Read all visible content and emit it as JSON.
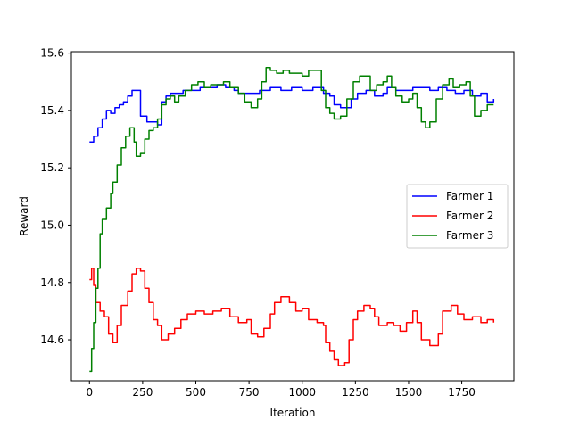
{
  "chart_data": {
    "type": "line",
    "title": "",
    "xlabel": "Iteration",
    "ylabel": "Reward",
    "xlim": [
      -85,
      1995
    ],
    "ylim": [
      14.457,
      15.605
    ],
    "x_ticks": [
      0,
      250,
      500,
      750,
      1000,
      1250,
      1500,
      1750
    ],
    "y_ticks": [
      14.6,
      14.8,
      15.0,
      15.2,
      15.4,
      15.6
    ],
    "x_tick_labels": [
      "0",
      "250",
      "500",
      "750",
      "1000",
      "1250",
      "1500",
      "1750"
    ],
    "y_tick_labels": [
      "14.6",
      "14.8",
      "15.0",
      "15.2",
      "15.4",
      "15.6"
    ],
    "grid": false,
    "legend_position": "center-right",
    "series": [
      {
        "name": "Farmer 1",
        "color": "#0000ff",
        "points": [
          [
            0,
            15.29
          ],
          [
            20,
            15.31
          ],
          [
            40,
            15.34
          ],
          [
            60,
            15.37
          ],
          [
            80,
            15.4
          ],
          [
            100,
            15.39
          ],
          [
            120,
            15.41
          ],
          [
            140,
            15.42
          ],
          [
            160,
            15.43
          ],
          [
            180,
            15.45
          ],
          [
            200,
            15.47
          ],
          [
            230,
            15.47
          ],
          [
            240,
            15.38
          ],
          [
            270,
            15.36
          ],
          [
            300,
            15.36
          ],
          [
            320,
            15.35
          ],
          [
            340,
            15.43
          ],
          [
            360,
            15.45
          ],
          [
            380,
            15.46
          ],
          [
            420,
            15.46
          ],
          [
            440,
            15.47
          ],
          [
            480,
            15.47
          ],
          [
            520,
            15.48
          ],
          [
            560,
            15.48
          ],
          [
            600,
            15.49
          ],
          [
            640,
            15.48
          ],
          [
            680,
            15.47
          ],
          [
            700,
            15.46
          ],
          [
            760,
            15.46
          ],
          [
            800,
            15.47
          ],
          [
            850,
            15.48
          ],
          [
            900,
            15.47
          ],
          [
            950,
            15.48
          ],
          [
            1000,
            15.47
          ],
          [
            1050,
            15.48
          ],
          [
            1100,
            15.46
          ],
          [
            1130,
            15.45
          ],
          [
            1150,
            15.42
          ],
          [
            1180,
            15.41
          ],
          [
            1200,
            15.41
          ],
          [
            1230,
            15.44
          ],
          [
            1260,
            15.46
          ],
          [
            1300,
            15.47
          ],
          [
            1340,
            15.45
          ],
          [
            1380,
            15.46
          ],
          [
            1400,
            15.48
          ],
          [
            1440,
            15.47
          ],
          [
            1480,
            15.47
          ],
          [
            1520,
            15.48
          ],
          [
            1560,
            15.48
          ],
          [
            1600,
            15.47
          ],
          [
            1640,
            15.48
          ],
          [
            1680,
            15.47
          ],
          [
            1720,
            15.46
          ],
          [
            1760,
            15.47
          ],
          [
            1800,
            15.45
          ],
          [
            1840,
            15.46
          ],
          [
            1870,
            15.43
          ],
          [
            1900,
            15.44
          ]
        ]
      },
      {
        "name": "Farmer 2",
        "color": "#ff0000",
        "points": [
          [
            0,
            14.81
          ],
          [
            10,
            14.85
          ],
          [
            20,
            14.79
          ],
          [
            30,
            14.73
          ],
          [
            50,
            14.7
          ],
          [
            70,
            14.68
          ],
          [
            90,
            14.62
          ],
          [
            110,
            14.59
          ],
          [
            130,
            14.65
          ],
          [
            150,
            14.72
          ],
          [
            180,
            14.77
          ],
          [
            200,
            14.83
          ],
          [
            220,
            14.85
          ],
          [
            240,
            14.84
          ],
          [
            260,
            14.78
          ],
          [
            280,
            14.73
          ],
          [
            300,
            14.67
          ],
          [
            320,
            14.65
          ],
          [
            340,
            14.6
          ],
          [
            370,
            14.62
          ],
          [
            400,
            14.64
          ],
          [
            430,
            14.67
          ],
          [
            460,
            14.69
          ],
          [
            500,
            14.7
          ],
          [
            540,
            14.69
          ],
          [
            580,
            14.7
          ],
          [
            620,
            14.71
          ],
          [
            660,
            14.68
          ],
          [
            700,
            14.66
          ],
          [
            740,
            14.67
          ],
          [
            760,
            14.62
          ],
          [
            790,
            14.61
          ],
          [
            820,
            14.64
          ],
          [
            850,
            14.69
          ],
          [
            870,
            14.73
          ],
          [
            900,
            14.75
          ],
          [
            940,
            14.73
          ],
          [
            970,
            14.7
          ],
          [
            1000,
            14.71
          ],
          [
            1030,
            14.67
          ],
          [
            1070,
            14.66
          ],
          [
            1100,
            14.65
          ],
          [
            1110,
            14.59
          ],
          [
            1130,
            14.56
          ],
          [
            1150,
            14.53
          ],
          [
            1170,
            14.51
          ],
          [
            1200,
            14.52
          ],
          [
            1220,
            14.6
          ],
          [
            1240,
            14.67
          ],
          [
            1260,
            14.7
          ],
          [
            1290,
            14.72
          ],
          [
            1320,
            14.71
          ],
          [
            1340,
            14.68
          ],
          [
            1360,
            14.65
          ],
          [
            1400,
            14.66
          ],
          [
            1430,
            14.65
          ],
          [
            1460,
            14.63
          ],
          [
            1490,
            14.66
          ],
          [
            1520,
            14.7
          ],
          [
            1540,
            14.66
          ],
          [
            1560,
            14.6
          ],
          [
            1600,
            14.58
          ],
          [
            1640,
            14.62
          ],
          [
            1660,
            14.7
          ],
          [
            1700,
            14.72
          ],
          [
            1730,
            14.69
          ],
          [
            1760,
            14.67
          ],
          [
            1800,
            14.68
          ],
          [
            1840,
            14.66
          ],
          [
            1870,
            14.67
          ],
          [
            1900,
            14.66
          ]
        ]
      },
      {
        "name": "Farmer 3",
        "color": "#008000",
        "points": [
          [
            0,
            14.49
          ],
          [
            10,
            14.57
          ],
          [
            20,
            14.66
          ],
          [
            30,
            14.78
          ],
          [
            40,
            14.85
          ],
          [
            50,
            14.97
          ],
          [
            60,
            15.02
          ],
          [
            80,
            15.06
          ],
          [
            100,
            15.11
          ],
          [
            110,
            15.15
          ],
          [
            130,
            15.21
          ],
          [
            150,
            15.27
          ],
          [
            170,
            15.31
          ],
          [
            190,
            15.34
          ],
          [
            210,
            15.29
          ],
          [
            220,
            15.24
          ],
          [
            240,
            15.25
          ],
          [
            260,
            15.3
          ],
          [
            280,
            15.33
          ],
          [
            300,
            15.34
          ],
          [
            320,
            15.37
          ],
          [
            340,
            15.42
          ],
          [
            360,
            15.44
          ],
          [
            380,
            15.45
          ],
          [
            400,
            15.43
          ],
          [
            420,
            15.45
          ],
          [
            450,
            15.47
          ],
          [
            480,
            15.49
          ],
          [
            510,
            15.5
          ],
          [
            540,
            15.48
          ],
          [
            570,
            15.49
          ],
          [
            600,
            15.49
          ],
          [
            630,
            15.5
          ],
          [
            660,
            15.48
          ],
          [
            700,
            15.46
          ],
          [
            730,
            15.43
          ],
          [
            760,
            15.41
          ],
          [
            790,
            15.44
          ],
          [
            810,
            15.5
          ],
          [
            830,
            15.55
          ],
          [
            850,
            15.54
          ],
          [
            880,
            15.53
          ],
          [
            910,
            15.54
          ],
          [
            940,
            15.53
          ],
          [
            970,
            15.53
          ],
          [
            1000,
            15.52
          ],
          [
            1030,
            15.54
          ],
          [
            1060,
            15.54
          ],
          [
            1090,
            15.47
          ],
          [
            1110,
            15.41
          ],
          [
            1130,
            15.39
          ],
          [
            1150,
            15.37
          ],
          [
            1180,
            15.38
          ],
          [
            1210,
            15.44
          ],
          [
            1240,
            15.5
          ],
          [
            1270,
            15.52
          ],
          [
            1300,
            15.52
          ],
          [
            1320,
            15.47
          ],
          [
            1350,
            15.49
          ],
          [
            1380,
            15.5
          ],
          [
            1400,
            15.52
          ],
          [
            1420,
            15.48
          ],
          [
            1440,
            15.45
          ],
          [
            1470,
            15.43
          ],
          [
            1500,
            15.44
          ],
          [
            1520,
            15.46
          ],
          [
            1540,
            15.41
          ],
          [
            1560,
            15.36
          ],
          [
            1580,
            15.34
          ],
          [
            1600,
            15.36
          ],
          [
            1630,
            15.44
          ],
          [
            1660,
            15.49
          ],
          [
            1690,
            15.51
          ],
          [
            1710,
            15.48
          ],
          [
            1740,
            15.49
          ],
          [
            1770,
            15.5
          ],
          [
            1790,
            15.45
          ],
          [
            1810,
            15.38
          ],
          [
            1840,
            15.4
          ],
          [
            1870,
            15.42
          ],
          [
            1900,
            15.42
          ]
        ]
      }
    ]
  }
}
